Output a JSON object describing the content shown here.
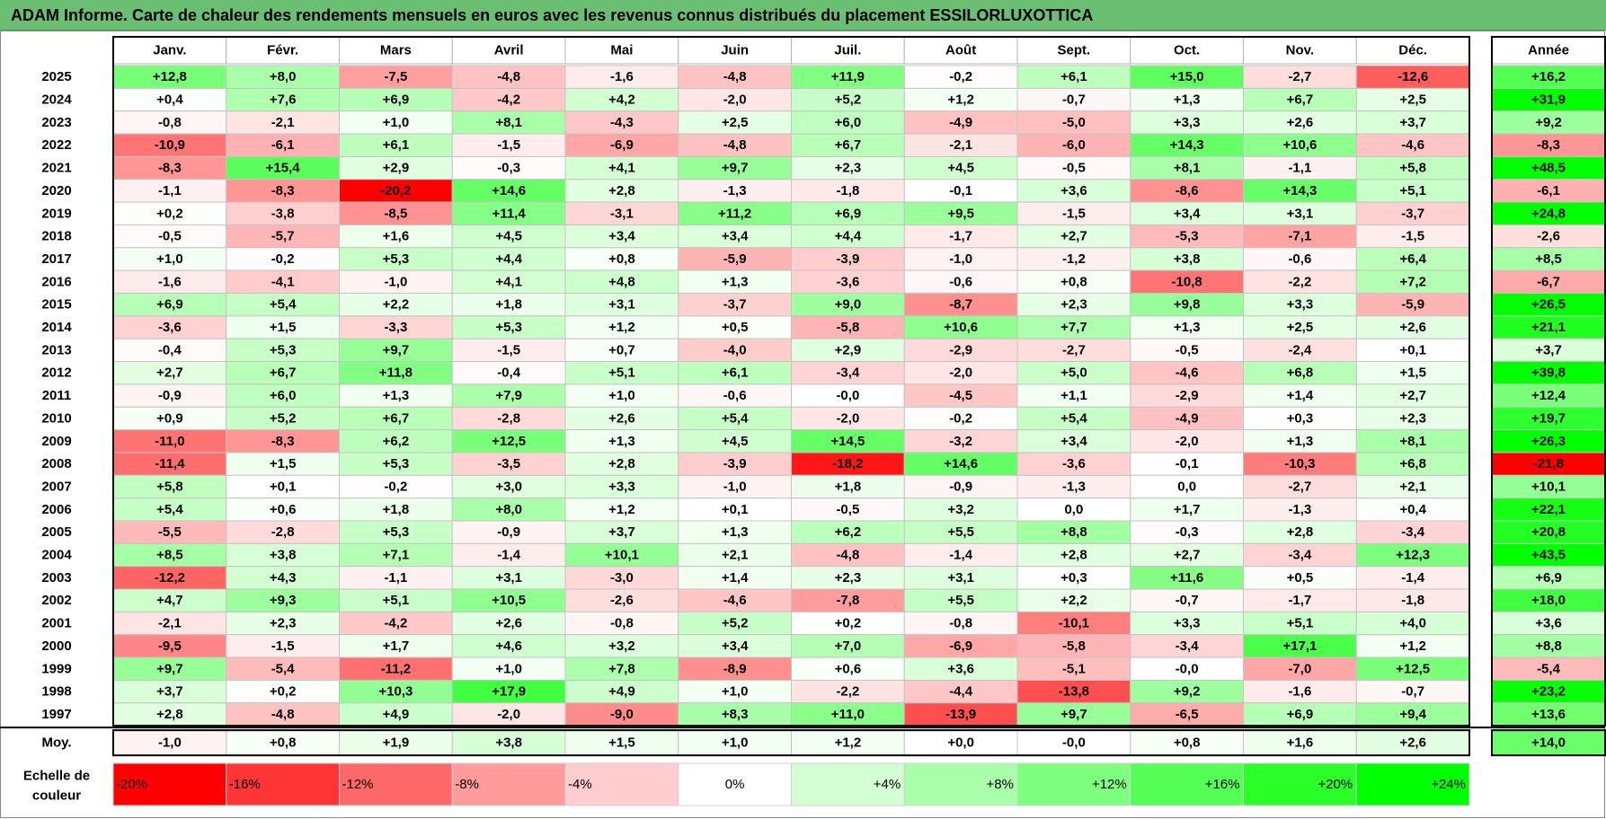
{
  "title": "ADAM Informe. Carte de chaleur des rendements mensuels en euros avec les revenus connus distribués du placement ESSILORLUXOTTICA",
  "chart_data": {
    "type": "heatmap",
    "months": [
      "Janv.",
      "Févr.",
      "Mars",
      "Avril",
      "Mai",
      "Juin",
      "Juil.",
      "Août",
      "Sept.",
      "Oct.",
      "Nov.",
      "Déc."
    ],
    "annual_label": "Année",
    "rows": [
      {
        "year": "2025",
        "m": [
          "+12,8",
          "+8,0",
          "-7,5",
          "-4,8",
          "-1,6",
          "-4,8",
          "+11,9",
          "-0,2",
          "+6,1",
          "+15,0",
          "-2,7",
          "-12,6"
        ],
        "annual": "+16,2"
      },
      {
        "year": "2024",
        "m": [
          "+0,4",
          "+7,6",
          "+6,9",
          "-4,2",
          "+4,2",
          "-2,0",
          "+5,2",
          "+1,2",
          "-0,7",
          "+1,3",
          "+6,7",
          "+2,5"
        ],
        "annual": "+31,9"
      },
      {
        "year": "2023",
        "m": [
          "-0,8",
          "-2,1",
          "+1,0",
          "+8,1",
          "-4,3",
          "+2,5",
          "+6,0",
          "-4,9",
          "-5,0",
          "+3,3",
          "+2,6",
          "+3,7"
        ],
        "annual": "+9,2"
      },
      {
        "year": "2022",
        "m": [
          "-10,9",
          "-6,1",
          "+6,1",
          "-1,5",
          "-6,9",
          "-4,8",
          "+6,7",
          "-2,1",
          "-6,0",
          "+14,3",
          "+10,6",
          "-4,6"
        ],
        "annual": "-8,3"
      },
      {
        "year": "2021",
        "m": [
          "-8,3",
          "+15,4",
          "+2,9",
          "-0,3",
          "+4,1",
          "+9,7",
          "+2,3",
          "+4,5",
          "-0,5",
          "+8,1",
          "-1,1",
          "+5,8"
        ],
        "annual": "+48,5"
      },
      {
        "year": "2020",
        "m": [
          "-1,1",
          "-8,3",
          "-20,2",
          "+14,6",
          "+2,8",
          "-1,3",
          "-1,8",
          "-0,1",
          "+3,6",
          "-8,6",
          "+14,3",
          "+5,1"
        ],
        "annual": "-6,1"
      },
      {
        "year": "2019",
        "m": [
          "+0,2",
          "-3,8",
          "-8,5",
          "+11,4",
          "-3,1",
          "+11,2",
          "+6,9",
          "+9,5",
          "-1,5",
          "+3,4",
          "+3,1",
          "-3,7"
        ],
        "annual": "+24,8"
      },
      {
        "year": "2018",
        "m": [
          "-0,5",
          "-5,7",
          "+1,6",
          "+4,5",
          "+3,4",
          "+3,4",
          "+4,4",
          "-1,7",
          "+2,7",
          "-5,3",
          "-7,1",
          "-1,5"
        ],
        "annual": "-2,6"
      },
      {
        "year": "2017",
        "m": [
          "+1,0",
          "-0,2",
          "+5,3",
          "+4,4",
          "+0,8",
          "-5,9",
          "-3,9",
          "-1,0",
          "-1,2",
          "+3,8",
          "-0,6",
          "+6,4"
        ],
        "annual": "+8,5"
      },
      {
        "year": "2016",
        "m": [
          "-1,6",
          "-4,1",
          "-1,0",
          "+4,1",
          "+4,8",
          "+1,3",
          "-3,6",
          "-0,6",
          "+0,8",
          "-10,8",
          "-2,2",
          "+7,2"
        ],
        "annual": "-6,7"
      },
      {
        "year": "2015",
        "m": [
          "+6,9",
          "+5,4",
          "+2,2",
          "+1,8",
          "+3,1",
          "-3,7",
          "+9,0",
          "-8,7",
          "+2,3",
          "+9,8",
          "+3,3",
          "-5,9"
        ],
        "annual": "+26,5"
      },
      {
        "year": "2014",
        "m": [
          "-3,6",
          "+1,5",
          "-3,3",
          "+5,3",
          "+1,2",
          "+0,5",
          "-5,8",
          "+10,6",
          "+7,7",
          "+1,3",
          "+2,5",
          "+2,6"
        ],
        "annual": "+21,1"
      },
      {
        "year": "2013",
        "m": [
          "-0,4",
          "+5,3",
          "+9,7",
          "-1,5",
          "+0,7",
          "-4,0",
          "+2,9",
          "-2,9",
          "-2,7",
          "-0,5",
          "-2,4",
          "+0,1"
        ],
        "annual": "+3,7"
      },
      {
        "year": "2012",
        "m": [
          "+2,7",
          "+6,7",
          "+11,8",
          "-0,4",
          "+5,1",
          "+6,1",
          "-3,4",
          "-2,0",
          "+5,0",
          "-4,6",
          "+6,8",
          "+1,5"
        ],
        "annual": "+39,8"
      },
      {
        "year": "2011",
        "m": [
          "-0,9",
          "+6,0",
          "+1,3",
          "+7,9",
          "+1,0",
          "-0,6",
          "-0,0",
          "-4,5",
          "+1,1",
          "-2,9",
          "+1,4",
          "+2,7"
        ],
        "annual": "+12,4"
      },
      {
        "year": "2010",
        "m": [
          "+0,9",
          "+5,2",
          "+6,7",
          "-2,8",
          "+2,6",
          "+5,4",
          "-2,0",
          "-0,2",
          "+5,4",
          "-4,9",
          "+0,3",
          "+2,3"
        ],
        "annual": "+19,7"
      },
      {
        "year": "2009",
        "m": [
          "-11,0",
          "-8,3",
          "+6,2",
          "+12,5",
          "+1,3",
          "+4,5",
          "+14,5",
          "-3,2",
          "+3,4",
          "-2,0",
          "+1,3",
          "+8,1"
        ],
        "annual": "+26,3"
      },
      {
        "year": "2008",
        "m": [
          "-11,4",
          "+1,5",
          "+5,3",
          "-3,5",
          "+2,8",
          "-3,9",
          "-18,2",
          "+14,6",
          "-3,6",
          "-0,1",
          "-10,3",
          "+6,8"
        ],
        "annual": "-21,8"
      },
      {
        "year": "2007",
        "m": [
          "+5,8",
          "+0,1",
          "-0,2",
          "+3,0",
          "+3,3",
          "-1,0",
          "+1,8",
          "-0,9",
          "-1,3",
          "0,0",
          "-2,7",
          "+2,1"
        ],
        "annual": "+10,1"
      },
      {
        "year": "2006",
        "m": [
          "+5,4",
          "+0,6",
          "+1,8",
          "+8,0",
          "+1,2",
          "+0,1",
          "-0,5",
          "+3,2",
          "0,0",
          "+1,7",
          "-1,3",
          "+0,4"
        ],
        "annual": "+22,1"
      },
      {
        "year": "2005",
        "m": [
          "-5,5",
          "-2,8",
          "+5,3",
          "-0,9",
          "+3,7",
          "+1,3",
          "+6,2",
          "+5,5",
          "+8,8",
          "-0,3",
          "+2,8",
          "-3,4"
        ],
        "annual": "+20,8"
      },
      {
        "year": "2004",
        "m": [
          "+8,5",
          "+3,8",
          "+7,1",
          "-1,4",
          "+10,1",
          "+2,1",
          "-4,8",
          "-1,4",
          "+2,8",
          "+2,7",
          "-3,4",
          "+12,3"
        ],
        "annual": "+43,5"
      },
      {
        "year": "2003",
        "m": [
          "-12,2",
          "+4,3",
          "-1,1",
          "+3,1",
          "-3,0",
          "+1,4",
          "+2,3",
          "+3,1",
          "+0,3",
          "+11,6",
          "+0,5",
          "-1,4"
        ],
        "annual": "+6,9"
      },
      {
        "year": "2002",
        "m": [
          "+4,7",
          "+9,3",
          "+5,1",
          "+10,5",
          "-2,6",
          "-4,6",
          "-7,8",
          "+5,5",
          "+2,2",
          "-0,7",
          "-1,7",
          "-1,8"
        ],
        "annual": "+18,0"
      },
      {
        "year": "2001",
        "m": [
          "-2,1",
          "+2,3",
          "-4,2",
          "+2,6",
          "-0,8",
          "+5,2",
          "+0,2",
          "-0,8",
          "-10,1",
          "+3,3",
          "+5,1",
          "+4,0"
        ],
        "annual": "+3,6"
      },
      {
        "year": "2000",
        "m": [
          "-9,5",
          "-1,5",
          "+1,7",
          "+4,6",
          "+3,2",
          "+3,4",
          "+7,0",
          "-6,9",
          "-5,8",
          "-3,4",
          "+17,1",
          "+1,2"
        ],
        "annual": "+8,8"
      },
      {
        "year": "1999",
        "m": [
          "+9,7",
          "-5,4",
          "-11,2",
          "+1,0",
          "+7,8",
          "-8,9",
          "+0,6",
          "+3,6",
          "-5,1",
          "-0,0",
          "-7,0",
          "+12,5"
        ],
        "annual": "-5,4"
      },
      {
        "year": "1998",
        "m": [
          "+3,7",
          "+0,2",
          "+10,3",
          "+17,9",
          "+4,9",
          "+1,0",
          "-2,2",
          "-4,4",
          "-13,8",
          "+9,2",
          "-1,6",
          "-0,7"
        ],
        "annual": "+23,2"
      },
      {
        "year": "1997",
        "m": [
          "+2,8",
          "-4,8",
          "+4,9",
          "-2,0",
          "-9,0",
          "+8,3",
          "+11,0",
          "-13,9",
          "+9,7",
          "-6,5",
          "+6,9",
          "+9,4"
        ],
        "annual": "+13,6"
      }
    ],
    "average": {
      "label": "Moy.",
      "m": [
        "-1,0",
        "+0,8",
        "+1,9",
        "+3,8",
        "+1,5",
        "+1,0",
        "+1,2",
        "+0,0",
        "-0,0",
        "+0,8",
        "+1,6",
        "+2,6"
      ],
      "annual": "+14,0"
    },
    "scale": {
      "label_line1": "Echelle de",
      "label_line2": "couleur",
      "steps": [
        {
          "label": "-20%",
          "value": -20,
          "color": "#ff0000"
        },
        {
          "label": "-16%",
          "value": -16,
          "color": "#ff3434"
        },
        {
          "label": "-12%",
          "value": -12,
          "color": "#ff6868"
        },
        {
          "label": "-8%",
          "value": -8,
          "color": "#ff9b9b"
        },
        {
          "label": "-4%",
          "value": -4,
          "color": "#ffcdcd"
        },
        {
          "label": "0%",
          "value": 0,
          "color": "#ffffff"
        },
        {
          "label": "+4%",
          "value": 4,
          "color": "#d4ffd4"
        },
        {
          "label": "+8%",
          "value": 8,
          "color": "#aaffaa"
        },
        {
          "label": "+12%",
          "value": 12,
          "color": "#7fff7f"
        },
        {
          "label": "+16%",
          "value": 16,
          "color": "#55ff55"
        },
        {
          "label": "+20%",
          "value": 20,
          "color": "#2aff2a"
        },
        {
          "label": "+24%",
          "value": 24,
          "color": "#00ff00"
        }
      ]
    }
  }
}
